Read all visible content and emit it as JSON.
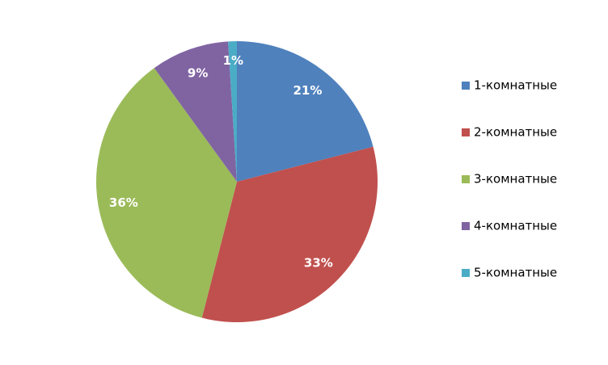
{
  "chart_data": {
    "type": "pie",
    "categories": [
      "1-комнатные",
      "2-комнатные",
      "3-комнатные",
      "4-комнатные",
      "5-комнатные"
    ],
    "values": [
      21,
      33,
      36,
      9,
      1
    ],
    "value_labels": [
      "21%",
      "33%",
      "36%",
      "9%",
      "1%"
    ],
    "colors": [
      "#4f81bd",
      "#c0504d",
      "#9bbb59",
      "#8064a2",
      "#4bacc6"
    ],
    "legend": "right"
  }
}
